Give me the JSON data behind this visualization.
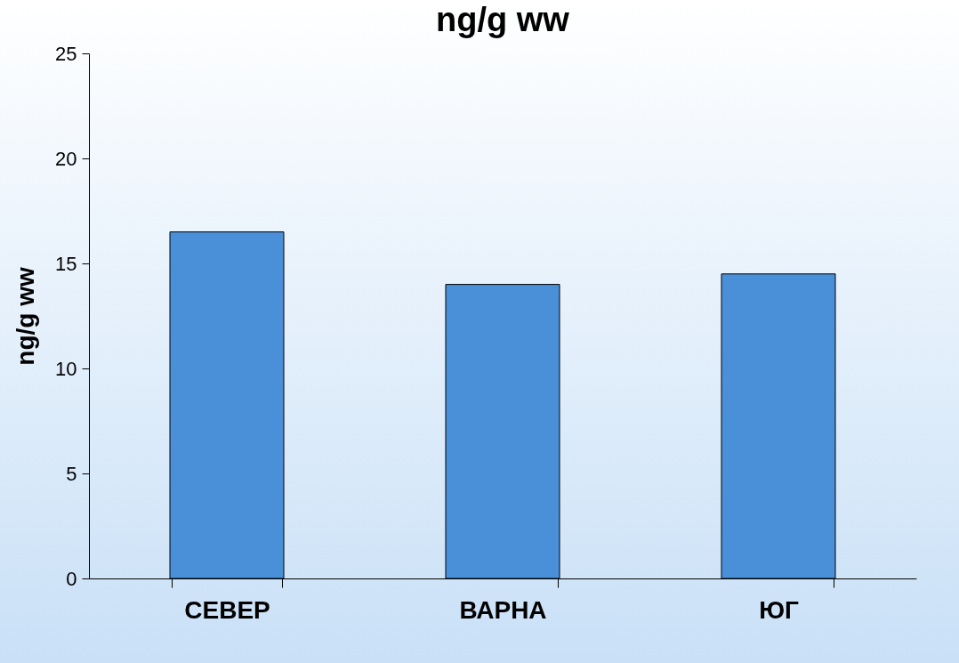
{
  "chart_data": {
    "type": "bar",
    "title": "ng/g ww",
    "ylabel": "ng/g ww",
    "categories": [
      "СЕВЕР",
      "ВАРНА",
      "ЮГ"
    ],
    "values": [
      16.5,
      14.0,
      14.5
    ],
    "color": "#4a90d9",
    "ylim": [
      0,
      25
    ],
    "yticks": [
      0,
      5,
      10,
      15,
      20,
      25
    ],
    "grid": false
  }
}
